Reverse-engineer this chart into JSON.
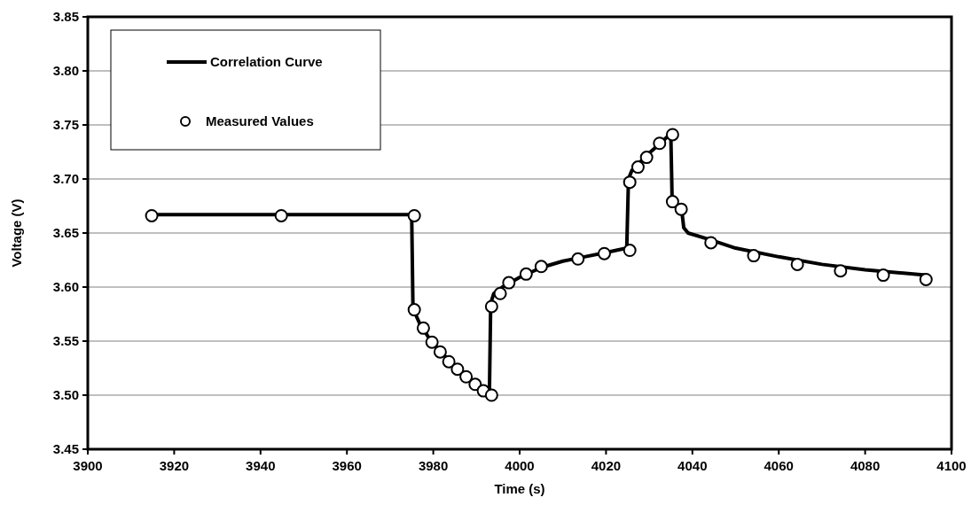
{
  "chart_data": {
    "type": "line",
    "xlabel": "Time (s)",
    "ylabel": "Voltage (V)",
    "xlim": [
      3900,
      4100
    ],
    "xticks": [
      3900,
      3920,
      3940,
      3960,
      3980,
      4000,
      4020,
      4040,
      4060,
      4080,
      4100
    ],
    "ylim": [
      3.45,
      3.85
    ],
    "yticks": [
      {
        "value": 3.45,
        "label": "3.45"
      },
      {
        "value": 3.5,
        "label": "3.50"
      },
      3.55,
      {
        "value": 3.6,
        "label": "3.60"
      },
      3.65,
      {
        "value": 3.7,
        "label": "3.70"
      },
      3.75,
      {
        "value": 3.8,
        "label": "3.80"
      },
      3.85
    ],
    "grid": "y",
    "legend": "top left",
    "series": [
      {
        "name": "Correlation Curve",
        "color": "#000000",
        "marker": "none",
        "line_style": "solid",
        "x": [
          3914.8,
          3975,
          3975.3,
          3977,
          3979,
          3981,
          3983,
          3985,
          3987,
          3989,
          3991,
          3993,
          3993.3,
          3994,
          3996,
          4000,
          4005,
          4010,
          4015,
          4020,
          4024.8,
          4025.2,
          4026,
          4028,
          4030,
          4032,
          4035,
          4035.3,
          4036.5,
          4037.5,
          4038,
          4039,
          4044,
          4050,
          4060,
          4070,
          4080,
          4094
        ],
        "values": [
          3.667,
          3.667,
          3.58,
          3.565,
          3.553,
          3.543,
          3.535,
          3.527,
          3.52,
          3.513,
          3.507,
          3.502,
          3.585,
          3.594,
          3.6,
          3.609,
          3.618,
          3.624,
          3.628,
          3.632,
          3.636,
          3.7,
          3.708,
          3.716,
          3.724,
          3.731,
          3.742,
          3.682,
          3.675,
          3.672,
          3.655,
          3.65,
          3.644,
          3.636,
          3.628,
          3.621,
          3.616,
          3.611
        ]
      },
      {
        "name": "Measured Values",
        "type": "scatter",
        "color": "#000000",
        "marker": "circle",
        "x": [
          3914.8,
          3944.8,
          3975.6,
          3975.6,
          3977.7,
          3979.7,
          3981.6,
          3983.6,
          3985.6,
          3987.6,
          3989.7,
          3991.6,
          3993.5,
          3993.5,
          3995.5,
          3997.5,
          4001.5,
          4005,
          4013.5,
          4019.6,
          4025.5,
          4025.5,
          4027.4,
          4029.4,
          4032.4,
          4035.4,
          4035.4,
          4037.4,
          4044.3,
          4054.2,
          4064.3,
          4074.3,
          4084.2,
          4094.1
        ],
        "values": [
          3.666,
          3.666,
          3.666,
          3.579,
          3.562,
          3.549,
          3.54,
          3.531,
          3.524,
          3.517,
          3.51,
          3.504,
          3.5,
          3.582,
          3.594,
          3.604,
          3.612,
          3.619,
          3.626,
          3.631,
          3.634,
          3.697,
          3.711,
          3.72,
          3.733,
          3.741,
          3.679,
          3.672,
          3.641,
          3.629,
          3.621,
          3.615,
          3.611,
          3.607
        ]
      }
    ]
  }
}
